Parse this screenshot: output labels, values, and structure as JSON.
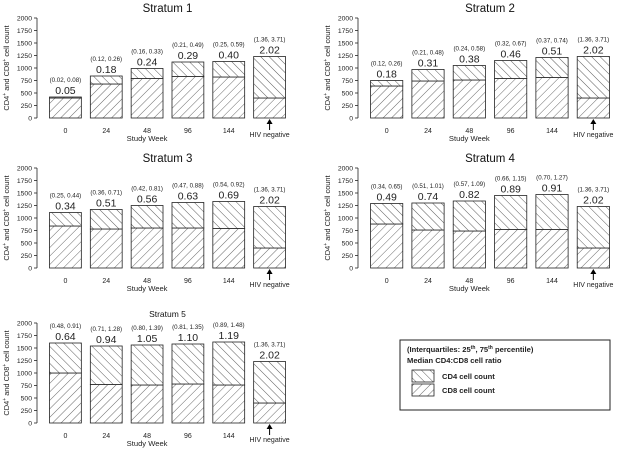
{
  "legend": {
    "header_main": "(Interquartiles: 25",
    "header_sup1": "th",
    "header_mid": ", 75",
    "header_sup2": "th",
    "header_end": " percentile)",
    "subheader": "Median CD4:CD8 cell ratio",
    "items": [
      {
        "label": "CD4 cell count",
        "pattern": "back-diagonal-hatch"
      },
      {
        "label": "CD8 cell count",
        "pattern": "forward-diagonal-hatch"
      }
    ]
  },
  "colors": {
    "bar_stroke": "#222222",
    "hatch": "#444444",
    "text": "#222222"
  },
  "chart_data": [
    {
      "type": "bar",
      "stacked": true,
      "title": "Stratum 1",
      "xlabel": "Study Week",
      "ylabel": "CD4+ and CD8+ cell count",
      "ylim": [
        0,
        2000
      ],
      "yticks": [
        0,
        250,
        500,
        750,
        1000,
        1250,
        1500,
        1750,
        2000
      ],
      "categories": [
        "0",
        "24",
        "48",
        "96",
        "144",
        "HIV negative"
      ],
      "series": [
        {
          "name": "CD8 cell count",
          "values": [
            400,
            680,
            790,
            830,
            820,
            400
          ]
        },
        {
          "name": "CD4 cell count",
          "values": [
            20,
            160,
            200,
            290,
            310,
            830
          ]
        }
      ],
      "ratio_labels": [
        "0.05",
        "0.18",
        "0.24",
        "0.29",
        "0.40",
        "2.02"
      ],
      "iqr_labels": [
        "(0.02, 0.08)",
        "(0.12, 0.26)",
        "(0.16, 0.33)",
        "(0.21, 0.49)",
        "(0.25, 0.59)",
        "(1.36, 3.71)"
      ]
    },
    {
      "type": "bar",
      "stacked": true,
      "title": "Stratum 2",
      "xlabel": "Study Week",
      "ylabel": "CD4+ and CD8+ cell count",
      "ylim": [
        0,
        2000
      ],
      "yticks": [
        0,
        250,
        500,
        750,
        1000,
        1250,
        1500,
        1750,
        2000
      ],
      "categories": [
        "0",
        "24",
        "48",
        "96",
        "144",
        "HIV negative"
      ],
      "series": [
        {
          "name": "CD8 cell count",
          "values": [
            640,
            740,
            760,
            790,
            810,
            400
          ]
        },
        {
          "name": "CD4 cell count",
          "values": [
            110,
            230,
            290,
            360,
            400,
            830
          ]
        }
      ],
      "ratio_labels": [
        "0.18",
        "0.31",
        "0.38",
        "0.46",
        "0.51",
        "2.02"
      ],
      "iqr_labels": [
        "(0.12, 0.26)",
        "(0.21, 0.48)",
        "(0.24, 0.58)",
        "(0.32, 0.67)",
        "(0.37, 0.74)",
        "(1.36, 3.71)"
      ]
    },
    {
      "type": "bar",
      "stacked": true,
      "title": "Stratum 3",
      "xlabel": "Study Week",
      "ylabel": "CD4+ and CD8+ cell count",
      "ylim": [
        0,
        2000
      ],
      "yticks": [
        0,
        250,
        500,
        750,
        1000,
        1250,
        1500,
        1750,
        2000
      ],
      "categories": [
        "0",
        "24",
        "48",
        "96",
        "144",
        "HIV negative"
      ],
      "series": [
        {
          "name": "CD8 cell count",
          "values": [
            840,
            780,
            800,
            800,
            790,
            400
          ]
        },
        {
          "name": "CD4 cell count",
          "values": [
            270,
            390,
            450,
            510,
            540,
            830
          ]
        }
      ],
      "ratio_labels": [
        "0.34",
        "0.51",
        "0.56",
        "0.63",
        "0.69",
        "2.02"
      ],
      "iqr_labels": [
        "(0.25, 0.44)",
        "(0.36, 0.71)",
        "(0.42, 0.81)",
        "(0.47, 0.88)",
        "(0.54, 0.92)",
        "(1.36, 3.71)"
      ]
    },
    {
      "type": "bar",
      "stacked": true,
      "title": "Stratum 4",
      "xlabel": "Study Week",
      "ylabel": "CD4+ and CD8+ cell count",
      "ylim": [
        0,
        2000
      ],
      "yticks": [
        0,
        250,
        500,
        750,
        1000,
        1250,
        1500,
        1750,
        2000
      ],
      "categories": [
        "0",
        "24",
        "48",
        "96",
        "144",
        "HIV negative"
      ],
      "series": [
        {
          "name": "CD8 cell count",
          "values": [
            880,
            760,
            740,
            770,
            770,
            400
          ]
        },
        {
          "name": "CD4 cell count",
          "values": [
            410,
            540,
            600,
            680,
            700,
            830
          ]
        }
      ],
      "ratio_labels": [
        "0.49",
        "0.74",
        "0.82",
        "0.89",
        "0.91",
        "2.02"
      ],
      "iqr_labels": [
        "(0.34, 0.65)",
        "(0.51, 1.01)",
        "(0.57, 1.09)",
        "(0.66, 1.15)",
        "(0.70, 1.27)",
        "(1.36, 3.71)"
      ]
    },
    {
      "type": "bar",
      "stacked": true,
      "title": "Stratum 5",
      "xlabel": "Study Week",
      "ylabel": "CD4+ and CD8+ cell count",
      "ylim": [
        0,
        2000
      ],
      "yticks": [
        0,
        250,
        500,
        750,
        1000,
        1250,
        1500,
        1750,
        2000
      ],
      "categories": [
        "0",
        "24",
        "48",
        "96",
        "144",
        "HIV negative"
      ],
      "series": [
        {
          "name": "CD8 cell count",
          "values": [
            1000,
            770,
            760,
            780,
            760,
            400
          ]
        },
        {
          "name": "CD4 cell count",
          "values": [
            600,
            770,
            800,
            800,
            860,
            830
          ]
        }
      ],
      "ratio_labels": [
        "0.64",
        "0.94",
        "1.05",
        "1.10",
        "1.19",
        "2.02"
      ],
      "iqr_labels": [
        "(0.48, 0.91)",
        "(0.71, 1.28)",
        "(0.80, 1.39)",
        "(0.81, 1.35)",
        "(0.89, 1.48)",
        "(1.36, 3.71)"
      ]
    }
  ]
}
